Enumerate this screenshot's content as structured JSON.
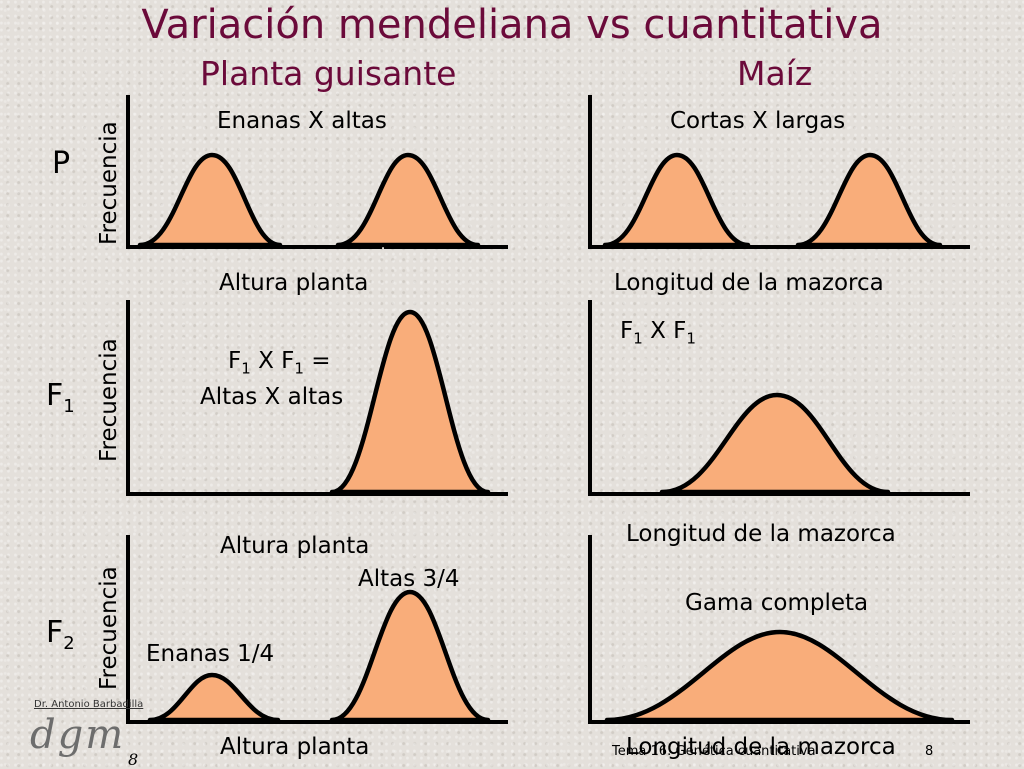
{
  "title": "Variación mendeliana vs cuantitativa",
  "columns": {
    "left": "Planta guisante",
    "right": "Maíz"
  },
  "y_label": "Frecuencia",
  "rows": {
    "p": "P",
    "f1": {
      "base": "F",
      "sub": "1"
    },
    "f2": {
      "base": "F",
      "sub": "2"
    }
  },
  "panels": {
    "p_left_label": "Enanas X altas",
    "p_right_label": "Cortas X largas",
    "p_left_xlabel": "Altura planta",
    "p_right_xlabel": "Longitud de la mazorca",
    "f1_right_cross": {
      "a": "F",
      "a_sub": "1",
      "mid": " X F",
      "b_sub": "1"
    },
    "f1_left_cross": {
      "a": "F",
      "a_sub": "1",
      "mid": " X F",
      "b_sub": "1",
      "tail": " ="
    },
    "f1_left_result": "Altas X altas",
    "f1_right_xlabel": "Longitud de la mazorca",
    "f2_left_heading": "Altura planta",
    "f2_left_tall": "Altas 3/4",
    "f2_left_short": "Enanas 1/4",
    "f2_right_range": "Gama completa",
    "f2_left_xlabel": "Altura planta",
    "f2_right_xlabel": "Longitud de la mazorca"
  },
  "footer": {
    "author": "Dr. Antonio Barbadilla",
    "logo": "dgm",
    "page_left": "8",
    "topic": "Tema 16: Genética cuantitativa",
    "page_right": "8"
  },
  "colors": {
    "fill": "#f9ad7a",
    "title": "#6b0a3a",
    "stroke": "#000000"
  }
}
